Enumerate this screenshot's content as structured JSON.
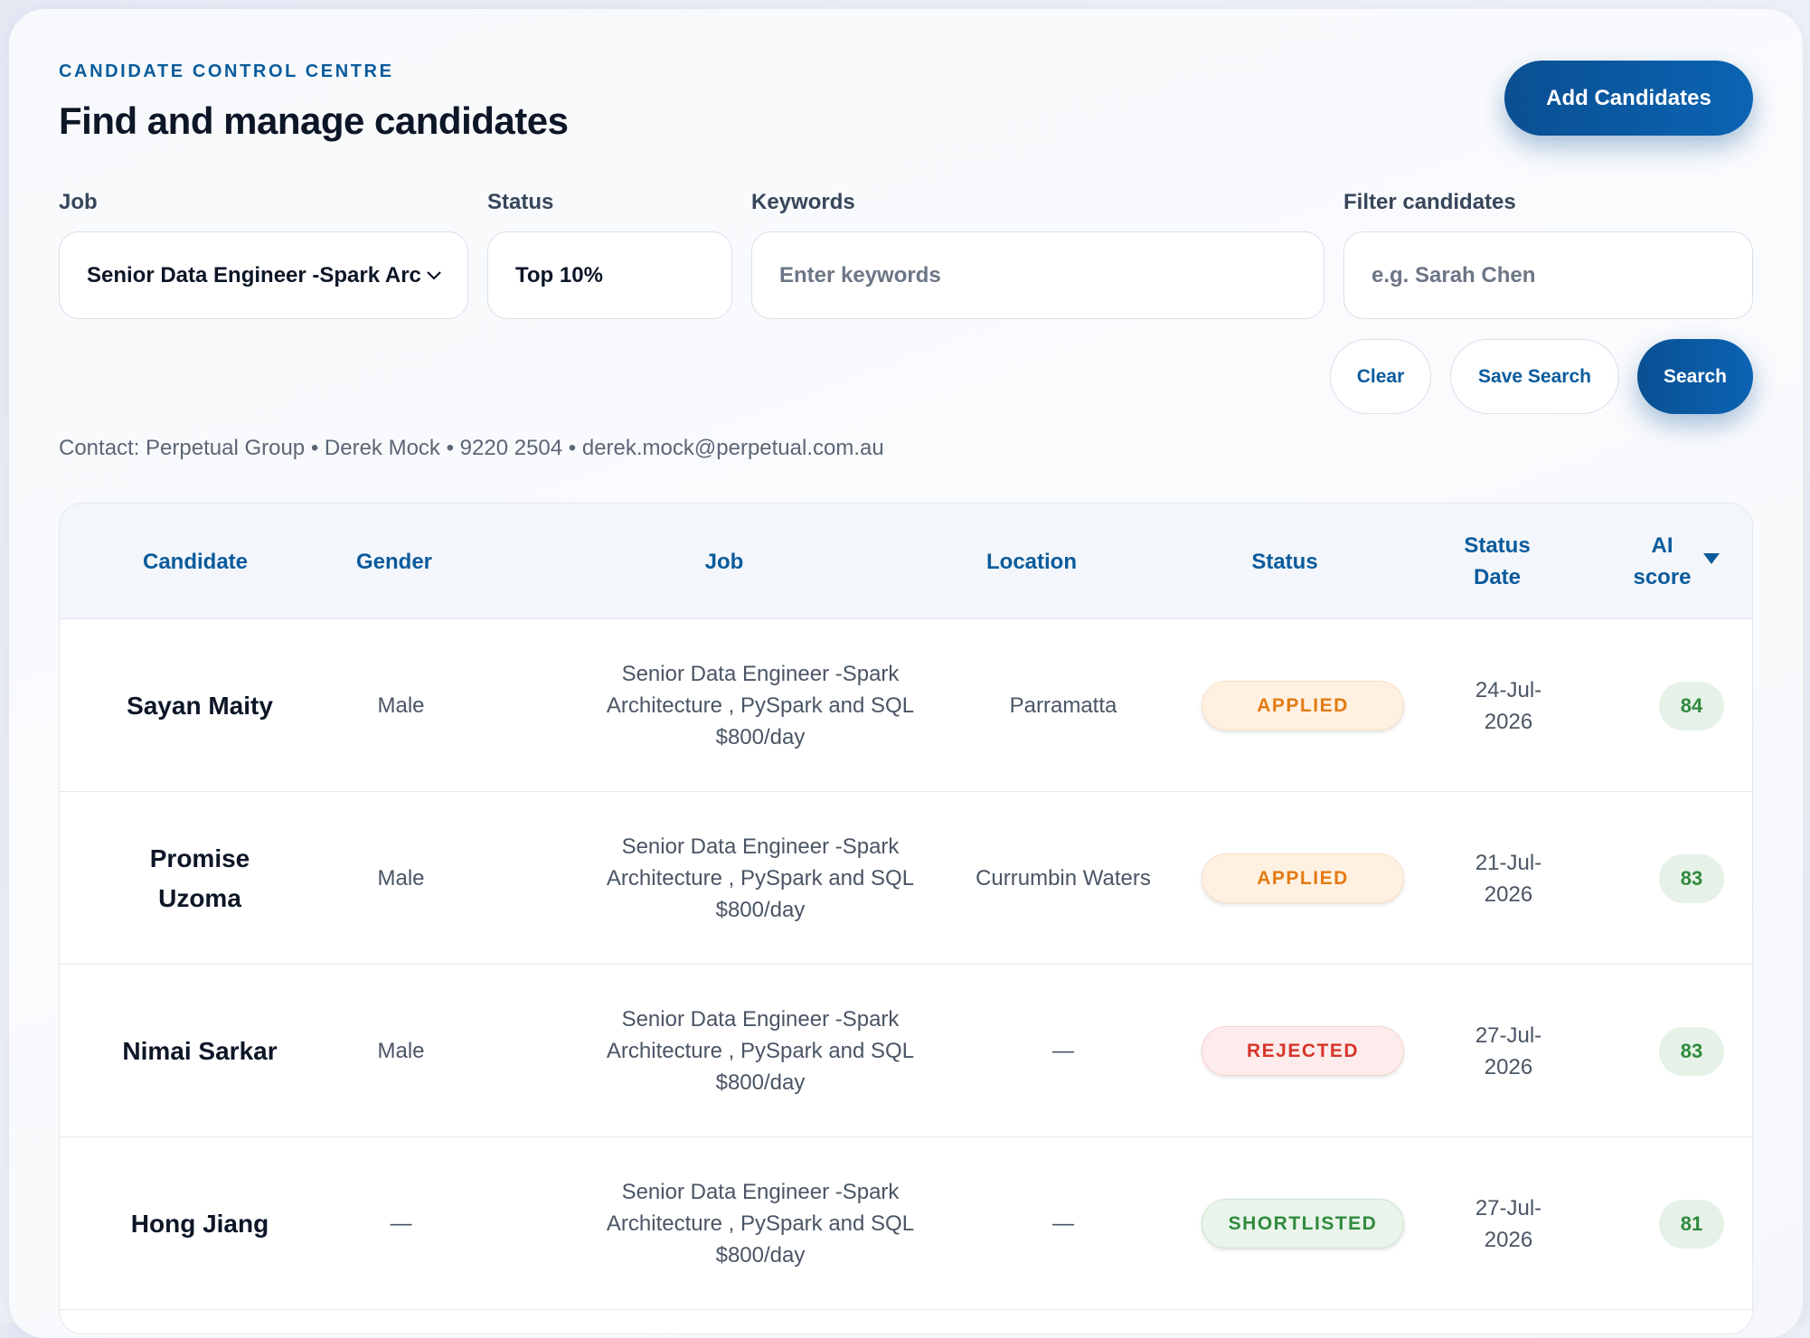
{
  "header": {
    "eyebrow": "CANDIDATE CONTROL CENTRE",
    "title": "Find and manage candidates",
    "add_button": "Add Candidates"
  },
  "filters": {
    "job_label": "Job",
    "job_value": "Senior Data Engineer -Spark Arc",
    "status_label": "Status",
    "status_value": "Top 10%",
    "keywords_label": "Keywords",
    "keywords_placeholder": "Enter keywords",
    "filter_label": "Filter candidates",
    "filter_placeholder": "e.g. Sarah Chen"
  },
  "actions": {
    "clear": "Clear",
    "save_search": "Save Search",
    "search": "Search"
  },
  "contact": "Contact: Perpetual Group • Derek Mock • 9220 2504 • derek.mock@perpetual.com.au",
  "table": {
    "columns": [
      "Candidate",
      "Gender",
      "Job",
      "Location",
      "Status",
      "Status Date",
      "AI score"
    ],
    "rows": [
      {
        "candidate": "Sayan Maity",
        "gender": "Male",
        "job": "Senior Data Engineer -Spark Architecture , PySpark and SQL $800/day",
        "location": "Parramatta",
        "status": "APPLIED",
        "status_date": "24-Jul-2026",
        "ai_score": "84"
      },
      {
        "candidate": "Promise Uzoma",
        "gender": "Male",
        "job": "Senior Data Engineer -Spark Architecture , PySpark and SQL $800/day",
        "location": "Currumbin Waters",
        "status": "APPLIED",
        "status_date": "21-Jul-2026",
        "ai_score": "83"
      },
      {
        "candidate": "Nimai Sarkar",
        "gender": "Male",
        "job": "Senior Data Engineer -Spark Architecture , PySpark and SQL $800/day",
        "location": "—",
        "status": "REJECTED",
        "status_date": "27-Jul-2026",
        "ai_score": "83"
      },
      {
        "candidate": "Hong Jiang",
        "gender": "—",
        "job": "Senior Data Engineer -Spark Architecture , PySpark and SQL $800/day",
        "location": "—",
        "status": "SHORTLISTED",
        "status_date": "27-Jul-2026",
        "ai_score": "81"
      }
    ]
  },
  "colors": {
    "accent": "#0a5b9c",
    "applied_bg": "#fff1e2",
    "applied_fg": "#e47a12",
    "rejected_bg": "#fdeceb",
    "rejected_fg": "#d8352a",
    "shortlisted_bg": "#e9f4ea",
    "shortlisted_fg": "#2f8a3d"
  }
}
